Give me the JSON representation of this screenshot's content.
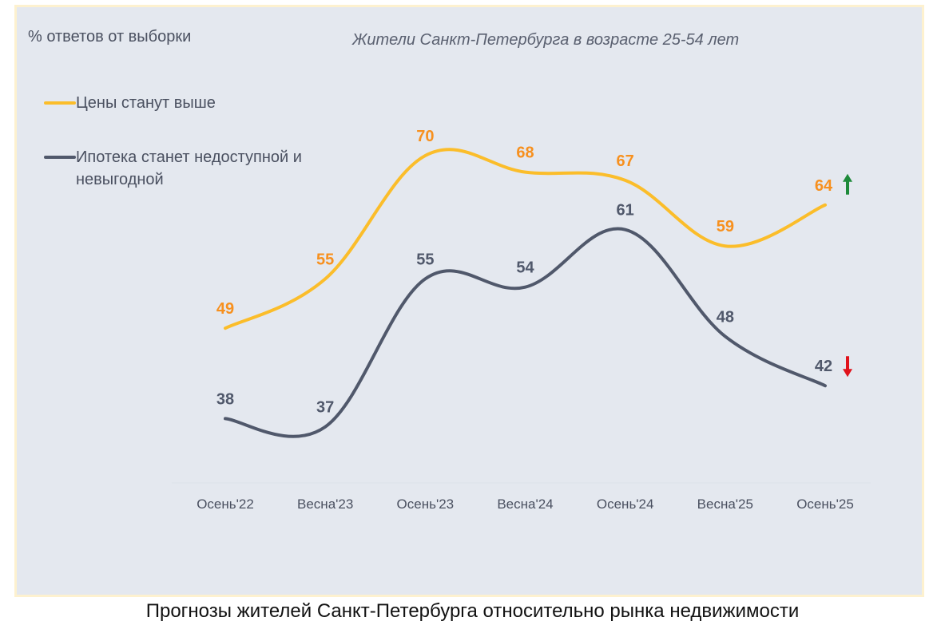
{
  "caption": "Прогнозы жителей Санкт-Петербурга относительно рынка недвижимости",
  "chart_data": {
    "type": "line",
    "title": "Жители Санкт-Петербурга в возрасте 25-54 лет",
    "ylabel": "% ответов от выборки",
    "xlabel": "",
    "categories": [
      "Осень'22",
      "Весна'23",
      "Осень'23",
      "Весна'24",
      "Осень'24",
      "Весна'25",
      "Осень'25"
    ],
    "ylim": [
      30,
      75
    ],
    "grid": false,
    "legend_position": "top-left",
    "series": [
      {
        "name": "Цены станут выше",
        "color": "#fbbd2a",
        "label_color": "#f7901e",
        "values": [
          49,
          55,
          70,
          68,
          67,
          59,
          64
        ],
        "trend": "up",
        "trend_color": "#1e8a3a"
      },
      {
        "name": "Ипотека станет недоступной и невыгодной",
        "color": "#50586b",
        "label_color": "#50586b",
        "values": [
          38,
          37,
          55,
          54,
          61,
          48,
          42
        ],
        "trend": "down",
        "trend_color": "#e0121b"
      }
    ]
  }
}
